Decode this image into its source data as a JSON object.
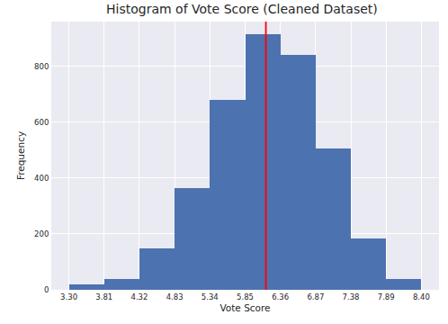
{
  "chart_data": {
    "type": "histogram",
    "title": "Histogram of Vote Score (Cleaned Dataset)",
    "x_label": "Vote Score",
    "y_label": "Frequency",
    "bins": [
      3.3,
      3.81,
      4.32,
      4.83,
      5.34,
      5.85,
      6.36,
      6.87,
      7.38,
      7.89,
      8.4
    ],
    "values": [
      18,
      38,
      148,
      365,
      680,
      915,
      840,
      505,
      183,
      38
    ],
    "color": "#4c72b0",
    "vline": {
      "value": 6.15,
      "color": "red"
    },
    "xlim": [
      3.045,
      8.655
    ],
    "xticks": [
      {
        "value": 3.3,
        "label": "3.30"
      },
      3.81,
      4.32,
      4.83,
      5.34,
      5.85,
      6.36,
      6.87,
      7.38,
      7.89,
      {
        "value": 8.4,
        "label": "8.40"
      }
    ],
    "ylim": [
      0,
      960
    ],
    "yticks": [
      0,
      200,
      400,
      600,
      800
    ],
    "grid": true
  }
}
